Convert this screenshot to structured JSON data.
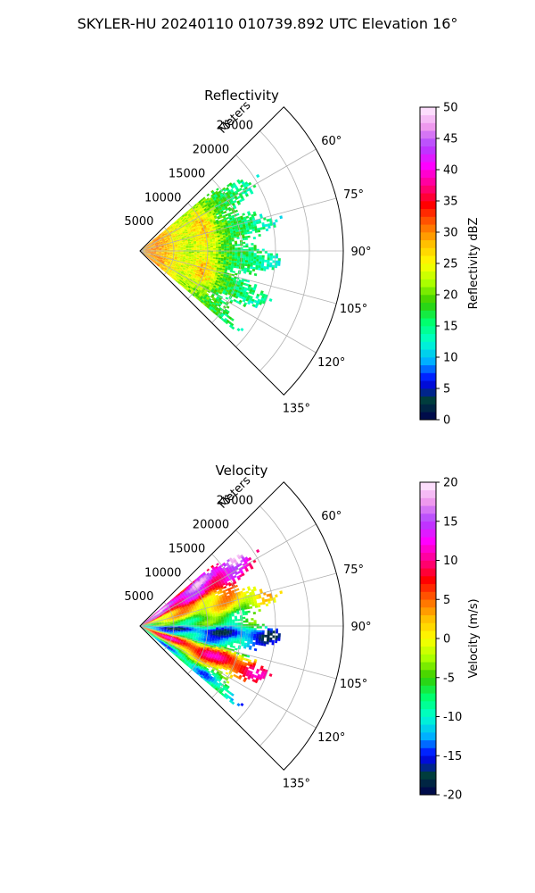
{
  "figure": {
    "suptitle": "SKYLER-HU  20240110  010739.892 UTC Elevation 16°"
  },
  "chart_data": [
    {
      "type": "heatmap",
      "subtype": "polar-sector",
      "title": "Reflectivity",
      "r_label": "Meters",
      "r_ticks": [
        5000,
        10000,
        15000,
        20000,
        25000
      ],
      "r_max": 30000,
      "theta_ticks": [
        "60°",
        "75°",
        "90°",
        "105°",
        "120°",
        "135°"
      ],
      "theta_range_deg": [
        45,
        135
      ],
      "data_extent_deg": [
        50,
        130
      ],
      "grid": true,
      "colorbar": {
        "label": "Reflectivity dBZ",
        "min": 0,
        "max": 50,
        "ticks": [
          0,
          5,
          10,
          15,
          20,
          25,
          30,
          35,
          40,
          45,
          50
        ],
        "stops": [
          "#00004d",
          "#003d3d",
          "#0000ff",
          "#00b0ff",
          "#00ffd0",
          "#00ff6e",
          "#33cc00",
          "#aaff00",
          "#ffff00",
          "#ffc000",
          "#ff6600",
          "#ff0000",
          "#ff0088",
          "#ff00ff",
          "#b040ff",
          "#ee99ee",
          "#ffeeff"
        ]
      },
      "field_description": "values mostly 15–30 dBZ; strongest 30–38 dBZ bands near 10000 m at azimuths 58–85° and 100–115°"
    },
    {
      "type": "heatmap",
      "subtype": "polar-sector",
      "title": "Velocity",
      "r_label": "Meters",
      "r_ticks": [
        5000,
        10000,
        15000,
        20000,
        25000
      ],
      "r_max": 30000,
      "theta_ticks": [
        "60°",
        "75°",
        "90°",
        "105°",
        "120°",
        "135°"
      ],
      "theta_range_deg": [
        45,
        135
      ],
      "data_extent_deg": [
        50,
        130
      ],
      "grid": true,
      "colorbar": {
        "label": "Velocity (m/s)",
        "min": -20,
        "max": 20,
        "ticks": [
          -20,
          -15,
          -10,
          -5,
          0,
          5,
          10,
          15,
          20
        ],
        "stops": [
          "#00004d",
          "#003d3d",
          "#0000ff",
          "#00b0ff",
          "#00ffd0",
          "#00ff6e",
          "#33cc00",
          "#aaff00",
          "#ffff00",
          "#ffc000",
          "#ff6600",
          "#ff0000",
          "#ff0088",
          "#ff00ff",
          "#b040ff",
          "#ee99ee",
          "#ffeeff"
        ]
      },
      "field_description": "+15 m/s magenta at ~55°, decreasing through red/yellow to green near 85°, -15 m/s blue/cyan band near 95°, rising to +10 m/s red near 110–118°, -12 m/s cyan near 128°"
    }
  ]
}
